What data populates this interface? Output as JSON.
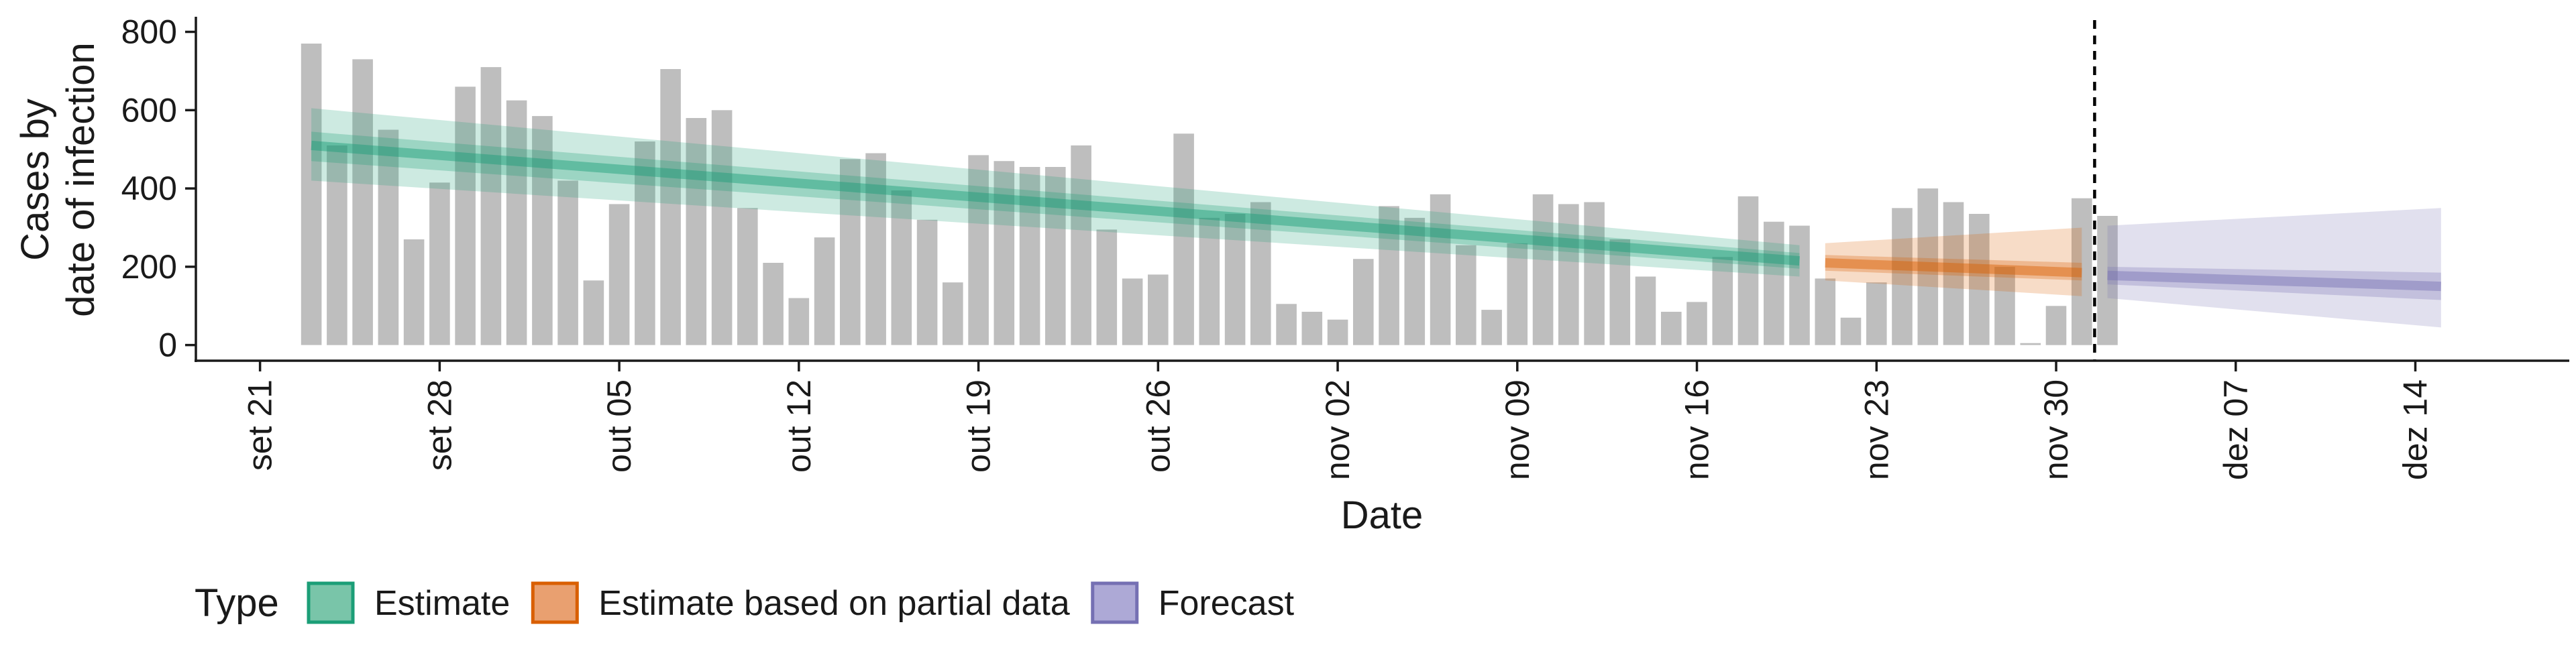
{
  "chart_data": {
    "type": "bar",
    "xlabel": "Date",
    "ylabel_lines": [
      "Cases by",
      "date of infection"
    ],
    "ylim": [
      -40,
      830
    ],
    "yticks": [
      0,
      200,
      400,
      600,
      800
    ],
    "x_tick_labels": [
      "set 21",
      "set 28",
      "out 05",
      "out 12",
      "out 19",
      "out 26",
      "nov 02",
      "nov 09",
      "nov 16",
      "nov 23",
      "nov 30",
      "dez 07",
      "dez 14"
    ],
    "x_tick_day_offsets": [
      0,
      7,
      14,
      21,
      28,
      35,
      42,
      49,
      56,
      63,
      70,
      77,
      84
    ],
    "x_range_day_offsets": [
      -2.5,
      90
    ],
    "bars": {
      "start_day_offset": 2,
      "color": "#bebebe",
      "values": [
        770,
        510,
        730,
        550,
        270,
        415,
        660,
        710,
        625,
        585,
        420,
        165,
        360,
        520,
        705,
        580,
        600,
        350,
        210,
        120,
        275,
        475,
        490,
        395,
        320,
        160,
        485,
        470,
        455,
        455,
        510,
        295,
        170,
        180,
        540,
        325,
        335,
        365,
        105,
        85,
        65,
        220,
        355,
        325,
        385,
        255,
        90,
        260,
        385,
        360,
        365,
        270,
        175,
        85,
        110,
        225,
        380,
        315,
        305,
        170,
        70,
        160,
        350,
        400,
        365,
        335,
        200,
        5,
        100,
        375,
        330
      ]
    },
    "forecast_line_day_offset": 71.5,
    "ribbons": [
      {
        "type": "Estimate",
        "color": "#1b9e77",
        "day_start": 2,
        "day_end": 60,
        "median_start": 510,
        "median_end": 215,
        "inner_lower_start": 470,
        "inner_lower_end": 195,
        "inner_upper_start": 545,
        "inner_upper_end": 235,
        "outer_lower_start": 420,
        "outer_lower_end": 175,
        "outer_upper_start": 605,
        "outer_upper_end": 255
      },
      {
        "type": "Estimate based on partial data",
        "color": "#d95f02",
        "day_start": 61,
        "day_end": 71,
        "median_start": 210,
        "median_end": 185,
        "inner_lower_start": 190,
        "inner_lower_end": 165,
        "inner_upper_start": 230,
        "inner_upper_end": 210,
        "outer_lower_start": 165,
        "outer_lower_end": 125,
        "outer_upper_start": 260,
        "outer_upper_end": 300
      },
      {
        "type": "Forecast",
        "color": "#7570b3",
        "day_start": 72,
        "day_end": 85,
        "median_start": 178,
        "median_end": 150,
        "inner_lower_start": 155,
        "inner_lower_end": 115,
        "inner_upper_start": 200,
        "inner_upper_end": 185,
        "outer_lower_start": 120,
        "outer_lower_end": 45,
        "outer_upper_start": 305,
        "outer_upper_end": 350
      }
    ],
    "legend": {
      "title": "Type",
      "position": "bottom-left",
      "items": [
        {
          "label": "Estimate",
          "fill": "#79c5a9",
          "stroke": "#1b9e77"
        },
        {
          "label": "Estimate based on partial data",
          "fill": "#e9a070",
          "stroke": "#d95f02"
        },
        {
          "label": "Forecast",
          "fill": "#ada9d6",
          "stroke": "#7570b3"
        }
      ]
    },
    "grid": false
  }
}
